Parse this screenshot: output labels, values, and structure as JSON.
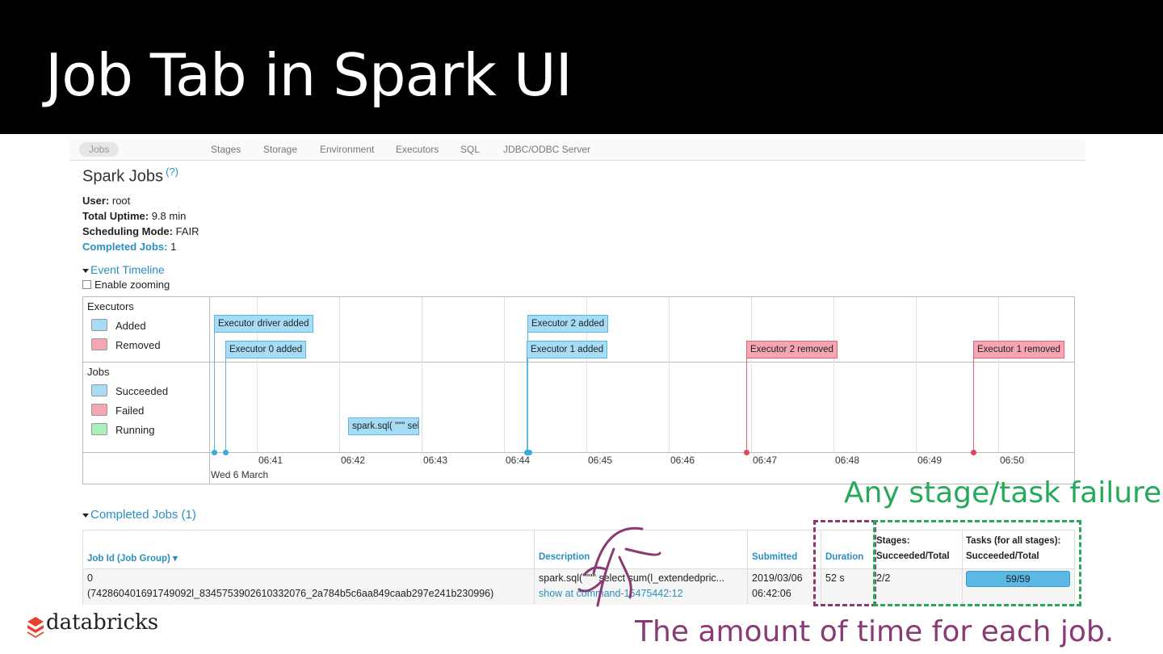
{
  "slide": {
    "title": "Job Tab in Spark UI"
  },
  "nav": {
    "items": [
      "Jobs",
      "Stages",
      "Storage",
      "Environment",
      "Executors",
      "SQL",
      "JDBC/ODBC Server"
    ],
    "active": "Jobs"
  },
  "page": {
    "title": "Spark Jobs",
    "help": "(?)",
    "user_label": "User:",
    "user_value": "root",
    "uptime_label": "Total Uptime:",
    "uptime_value": "9.8 min",
    "mode_label": "Scheduling Mode:",
    "mode_value": "FAIR",
    "completed_label": "Completed Jobs:",
    "completed_value": "1"
  },
  "timeline": {
    "toggle": "Event Timeline",
    "zoom_label": "Enable zooming",
    "executors_title": "Executors",
    "legend_added": "Added",
    "legend_removed": "Removed",
    "jobs_title": "Jobs",
    "legend_succeeded": "Succeeded",
    "legend_failed": "Failed",
    "legend_running": "Running",
    "ticks": [
      "06:41",
      "06:42",
      "06:43",
      "06:44",
      "06:45",
      "06:46",
      "06:47",
      "06:48",
      "06:49",
      "06:50"
    ],
    "date": "Wed 6 March",
    "events": {
      "driver_added": "Executor driver added",
      "exec0_added": "Executor 0 added",
      "exec2_added": "Executor 2 added",
      "exec1_added": "Executor 1 added",
      "exec2_removed": "Executor 2 removed",
      "exec1_removed": "Executor 1 removed",
      "job": "spark.sql( \"\"\" select"
    },
    "colors": {
      "added": "#a7dcf6",
      "removed": "#f6a5b2",
      "running": "#a9f0b8"
    }
  },
  "completed": {
    "toggle": "Completed Jobs (1)",
    "headers": {
      "job_id": "Job Id (Job Group) ▾",
      "description": "Description",
      "submitted": "Submitted",
      "duration": "Duration",
      "stages_1": "Stages:",
      "stages_2": "Succeeded/Total",
      "tasks_1": "Tasks (for all stages):",
      "tasks_2": "Succeeded/Total"
    },
    "row": {
      "job_id": "0",
      "job_group": "(742860401691749092l_834575390261033207​6_2a784b5c6aa849caab297e241b230996)",
      "description": "spark.sql( \"\"\" select sum(l_extendedpric...",
      "desc_link": "show at command-15475442:12",
      "submitted_1": "2019/03/06",
      "submitted_2": "06:42:06",
      "duration": "52 s",
      "stages": "2/2",
      "tasks": "59/59"
    }
  },
  "annotations": {
    "green_note": "Any stage/task failure?",
    "purple_note": "The amount of time for each job."
  },
  "footer": {
    "logo": "databricks"
  }
}
